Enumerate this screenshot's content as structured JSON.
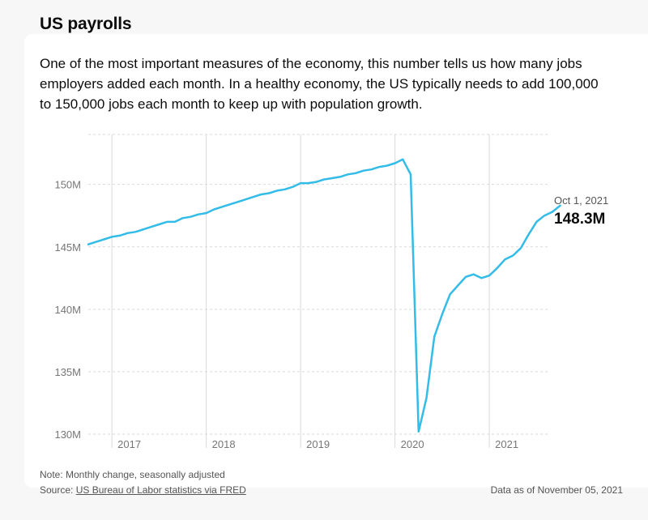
{
  "title": "US payrolls",
  "description": "One of the most important measures of the economy, this number tells us how many jobs employers added each month. In a healthy economy, the US typically needs to add 100,000 to 150,000 jobs each month to keep up with population growth.",
  "latest": {
    "date": "Oct 1, 2021",
    "value": "148.3M"
  },
  "footer": {
    "note": "Note: Monthly change, seasonally adjusted",
    "source_prefix": "Source: ",
    "source_link": "US Bureau of Labor statistics via FRED",
    "as_of": "Data as of November 05, 2021"
  },
  "colors": {
    "line": "#33bce8",
    "grid": "#d9d9d9",
    "text": "#767676"
  },
  "chart_data": {
    "type": "line",
    "ylim": [
      130,
      154
    ],
    "y_ticks": [
      130,
      135,
      140,
      145,
      150
    ],
    "y_tick_labels": [
      "130M",
      "135M",
      "140M",
      "145M",
      "150M"
    ],
    "x_ticks": [
      2017,
      2018,
      2019,
      2020,
      2021
    ],
    "x_tick_labels": [
      "2017",
      "2018",
      "2019",
      "2020",
      "2021"
    ],
    "grid": {
      "horizontal": "dashed",
      "vertical": "solid"
    },
    "series": [
      {
        "x": [
          "2016-10",
          "2016-11",
          "2016-12",
          "2017-01",
          "2017-02",
          "2017-03",
          "2017-04",
          "2017-05",
          "2017-06",
          "2017-07",
          "2017-08",
          "2017-09",
          "2017-10",
          "2017-11",
          "2017-12",
          "2018-01",
          "2018-02",
          "2018-03",
          "2018-04",
          "2018-05",
          "2018-06",
          "2018-07",
          "2018-08",
          "2018-09",
          "2018-10",
          "2018-11",
          "2018-12",
          "2019-01",
          "2019-02",
          "2019-03",
          "2019-04",
          "2019-05",
          "2019-06",
          "2019-07",
          "2019-08",
          "2019-09",
          "2019-10",
          "2019-11",
          "2019-12",
          "2020-01",
          "2020-02",
          "2020-03",
          "2020-04",
          "2020-05",
          "2020-06",
          "2020-07",
          "2020-08",
          "2020-09",
          "2020-10",
          "2020-11",
          "2020-12",
          "2021-01",
          "2021-02",
          "2021-03",
          "2021-04",
          "2021-05",
          "2021-06",
          "2021-07",
          "2021-08",
          "2021-09",
          "2021-10"
        ],
        "values": [
          145.2,
          145.4,
          145.6,
          145.8,
          145.9,
          146.1,
          146.2,
          146.4,
          146.6,
          146.8,
          147.0,
          147.0,
          147.3,
          147.4,
          147.6,
          147.7,
          148.0,
          148.2,
          148.4,
          148.6,
          148.8,
          149.0,
          149.2,
          149.3,
          149.5,
          149.6,
          149.8,
          150.1,
          150.1,
          150.2,
          150.4,
          150.5,
          150.6,
          150.8,
          150.9,
          151.1,
          151.2,
          151.4,
          151.5,
          151.7,
          152.0,
          150.8,
          130.2,
          132.9,
          137.8,
          139.6,
          141.2,
          141.9,
          142.6,
          142.8,
          142.5,
          142.7,
          143.3,
          144.0,
          144.3,
          144.9,
          146.0,
          147.0,
          147.5,
          147.8,
          148.3
        ]
      }
    ]
  }
}
